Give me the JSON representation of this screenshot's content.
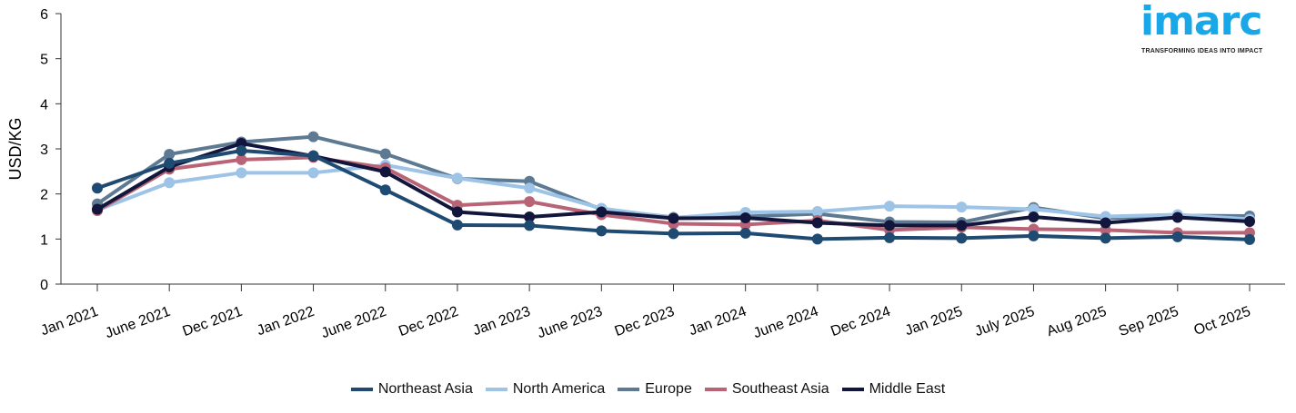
{
  "chart_data": {
    "type": "line",
    "ylabel": "USD/KG",
    "xlabel": "",
    "ylim": [
      0,
      6
    ],
    "yticks": [
      0,
      1,
      2,
      3,
      4,
      5,
      6
    ],
    "grid": false,
    "legend_position": "bottom-center",
    "categories": [
      "Jan 2021",
      "June 2021",
      "Dec 2021",
      "Jan 2022",
      "June 2022",
      "Dec 2022",
      "Jan 2023",
      "June 2023",
      "Dec 2023",
      "Jan 2024",
      "June 2024",
      "Dec 2024",
      "Jan 2025",
      "July 2025",
      "Aug 2025",
      "Sep 2025",
      "Oct 2025"
    ],
    "series": [
      {
        "name": "Europe",
        "color": "#5e7a93",
        "values": [
          1.78,
          2.88,
          3.15,
          3.27,
          2.89,
          2.34,
          2.28,
          1.66,
          1.48,
          1.5,
          1.56,
          1.38,
          1.37,
          1.7,
          1.46,
          1.52,
          1.51
        ]
      },
      {
        "name": "North America",
        "color": "#9dc3e6",
        "values": [
          1.64,
          2.25,
          2.47,
          2.47,
          2.64,
          2.35,
          2.13,
          1.68,
          1.47,
          1.59,
          1.61,
          1.73,
          1.71,
          1.66,
          1.5,
          1.54,
          1.44
        ]
      },
      {
        "name": "Southeast Asia",
        "color": "#b86476",
        "values": [
          1.63,
          2.55,
          2.76,
          2.81,
          2.58,
          1.75,
          1.83,
          1.54,
          1.34,
          1.32,
          1.41,
          1.2,
          1.26,
          1.22,
          1.2,
          1.14,
          1.14
        ]
      },
      {
        "name": "Middle East",
        "color": "#12163d",
        "values": [
          1.66,
          2.6,
          3.12,
          2.84,
          2.49,
          1.6,
          1.49,
          1.6,
          1.46,
          1.47,
          1.36,
          1.3,
          1.3,
          1.49,
          1.36,
          1.48,
          1.39
        ]
      },
      {
        "name": "Northeast Asia",
        "color": "#1f4a72",
        "values": [
          2.13,
          2.68,
          2.96,
          2.85,
          2.09,
          1.31,
          1.3,
          1.18,
          1.12,
          1.13,
          1.0,
          1.03,
          1.02,
          1.07,
          1.02,
          1.05,
          0.99
        ]
      }
    ],
    "legend_order": [
      "Northeast Asia",
      "North America",
      "Europe",
      "Southeast Asia",
      "Middle East"
    ]
  },
  "legend": [
    {
      "label": "Northeast Asia",
      "color": "#1f4a72"
    },
    {
      "label": "North America",
      "color": "#9dc3e6"
    },
    {
      "label": "Europe",
      "color": "#5e7a93"
    },
    {
      "label": "Southeast Asia",
      "color": "#b86476"
    },
    {
      "label": "Middle East",
      "color": "#12163d"
    }
  ],
  "logo": {
    "word": "imarc",
    "tagline": "TRANSFORMING IDEAS INTO IMPACT"
  }
}
